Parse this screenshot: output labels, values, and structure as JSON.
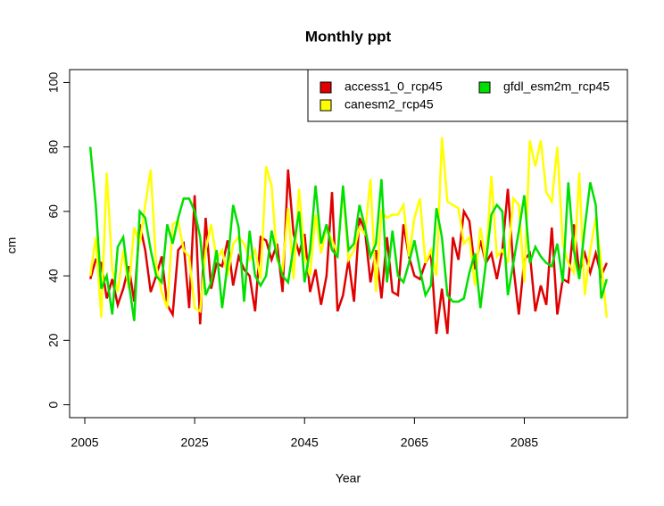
{
  "chart_data": {
    "type": "line",
    "title": "Monthly  ppt",
    "x_label": "Year",
    "y_label": "cm",
    "x": [
      2006,
      2007,
      2008,
      2009,
      2010,
      2011,
      2012,
      2013,
      2014,
      2015,
      2016,
      2017,
      2018,
      2019,
      2020,
      2021,
      2022,
      2023,
      2024,
      2025,
      2026,
      2027,
      2028,
      2029,
      2030,
      2031,
      2032,
      2033,
      2034,
      2035,
      2036,
      2037,
      2038,
      2039,
      2040,
      2041,
      2042,
      2043,
      2044,
      2045,
      2046,
      2047,
      2048,
      2049,
      2050,
      2051,
      2052,
      2053,
      2054,
      2055,
      2056,
      2057,
      2058,
      2059,
      2060,
      2061,
      2062,
      2063,
      2064,
      2065,
      2066,
      2067,
      2068,
      2069,
      2070,
      2071,
      2072,
      2073,
      2074,
      2075,
      2076,
      2077,
      2078,
      2079,
      2080,
      2081,
      2082,
      2083,
      2084,
      2085,
      2086,
      2087,
      2088,
      2089,
      2090,
      2091,
      2092,
      2093,
      2094,
      2095,
      2096,
      2097,
      2098,
      2099,
      2100
    ],
    "series": [
      {
        "name": "access1_0_rcp45",
        "color": "#e00000",
        "values": [
          39,
          45,
          44,
          33,
          39,
          31,
          36,
          43,
          32,
          56,
          48,
          35,
          40,
          46,
          31,
          28,
          48,
          50,
          30,
          65,
          25,
          58,
          36,
          44,
          43,
          51,
          37,
          46,
          42,
          40,
          29,
          52,
          51,
          45,
          50,
          35,
          73,
          53,
          47,
          53,
          35,
          42,
          31,
          40,
          66,
          29,
          34,
          45,
          32,
          58,
          54,
          38,
          48,
          33,
          52,
          35,
          34,
          56,
          46,
          40,
          39,
          44,
          47,
          22,
          36,
          22,
          52,
          45,
          60,
          57,
          42,
          51,
          44,
          47,
          39,
          48,
          67,
          43,
          28,
          45,
          47,
          29,
          37,
          31,
          55,
          28,
          39,
          38,
          56,
          41,
          47,
          41,
          47,
          40,
          44
        ]
      },
      {
        "name": "canesm2_rcp45",
        "color": "#ffff00",
        "values": [
          40,
          52,
          27,
          72,
          42,
          35,
          48,
          36,
          55,
          50,
          62,
          73,
          43,
          35,
          30,
          56,
          57,
          48,
          46,
          30,
          29,
          48,
          56,
          45,
          48,
          40,
          50,
          52,
          50,
          45,
          48,
          39,
          74,
          68,
          45,
          42,
          61,
          39,
          67,
          46,
          40,
          59,
          47,
          55,
          51,
          47,
          67,
          45,
          48,
          55,
          53,
          70,
          35,
          60,
          58,
          59,
          59,
          62,
          46,
          58,
          64,
          44,
          48,
          40,
          83,
          63,
          62,
          61,
          50,
          52,
          37,
          55,
          44,
          71,
          46,
          48,
          44,
          64,
          62,
          38,
          82,
          74,
          82,
          66,
          63,
          80,
          50,
          44,
          41,
          72,
          34,
          48,
          58,
          44,
          27
        ]
      },
      {
        "name": "gfdl_esm2m_rcp45",
        "color": "#00e000",
        "values": [
          80,
          62,
          36,
          40,
          28,
          49,
          52,
          38,
          26,
          60,
          58,
          48,
          40,
          38,
          56,
          50,
          58,
          64,
          64,
          60,
          52,
          34,
          38,
          48,
          30,
          44,
          62,
          55,
          32,
          54,
          40,
          37,
          40,
          54,
          46,
          40,
          38,
          49,
          60,
          38,
          48,
          68,
          50,
          56,
          48,
          46,
          68,
          48,
          50,
          62,
          55,
          46,
          50,
          70,
          38,
          54,
          40,
          38,
          44,
          51,
          42,
          34,
          37,
          61,
          52,
          34,
          32,
          32,
          33,
          41,
          47,
          30,
          44,
          59,
          62,
          60,
          34,
          44,
          54,
          65,
          44,
          49,
          46,
          44,
          43,
          50,
          38,
          69,
          48,
          39,
          55,
          69,
          62,
          33,
          39
        ]
      }
    ],
    "xlim": [
      2002.24,
      2103.76
    ],
    "xticks": [
      2005,
      2025,
      2045,
      2065,
      2085
    ],
    "ylim": [
      -4,
      104
    ],
    "yticks": [
      0,
      20,
      40,
      60,
      80,
      100
    ],
    "legend": "top-right"
  }
}
